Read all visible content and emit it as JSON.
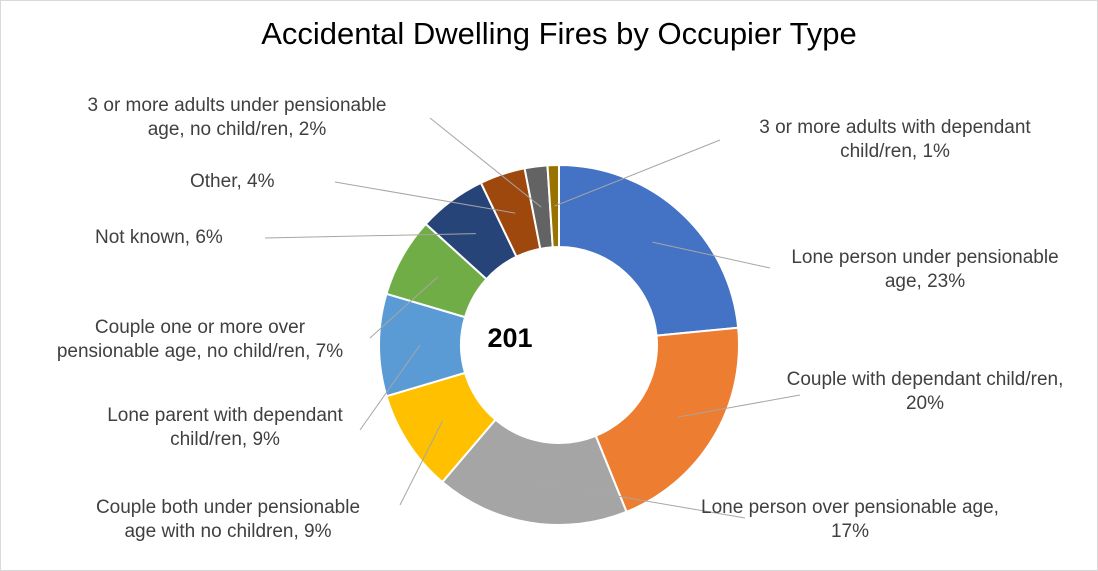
{
  "chart_data": {
    "type": "donut",
    "title": "Accidental Dwelling Fires by Occupier Type",
    "center_label": "201",
    "categories": [
      "Lone person under pensionable age, 23%",
      "Couple with dependant child/ren, 20%",
      "Lone person over pensionable age, 17%",
      "Couple both under pensionable age with no children, 9%",
      "Lone parent with dependant child/ren, 9%",
      "Couple one or more over pensionable age, no child/ren, 7%",
      "Not known, 6%",
      "Other, 4%",
      "3 or more adults under pensionable age, no child/ren, 2%",
      "3 or more adults with dependant child/ren, 1%"
    ],
    "values": [
      23,
      20,
      17,
      9,
      9,
      7,
      6,
      4,
      2,
      1
    ],
    "colors": [
      "#4472c4",
      "#ed7d31",
      "#a5a5a5",
      "#ffc000",
      "#5b9bd5",
      "#70ad47",
      "#264478",
      "#9e480e",
      "#636363",
      "#997300"
    ]
  }
}
